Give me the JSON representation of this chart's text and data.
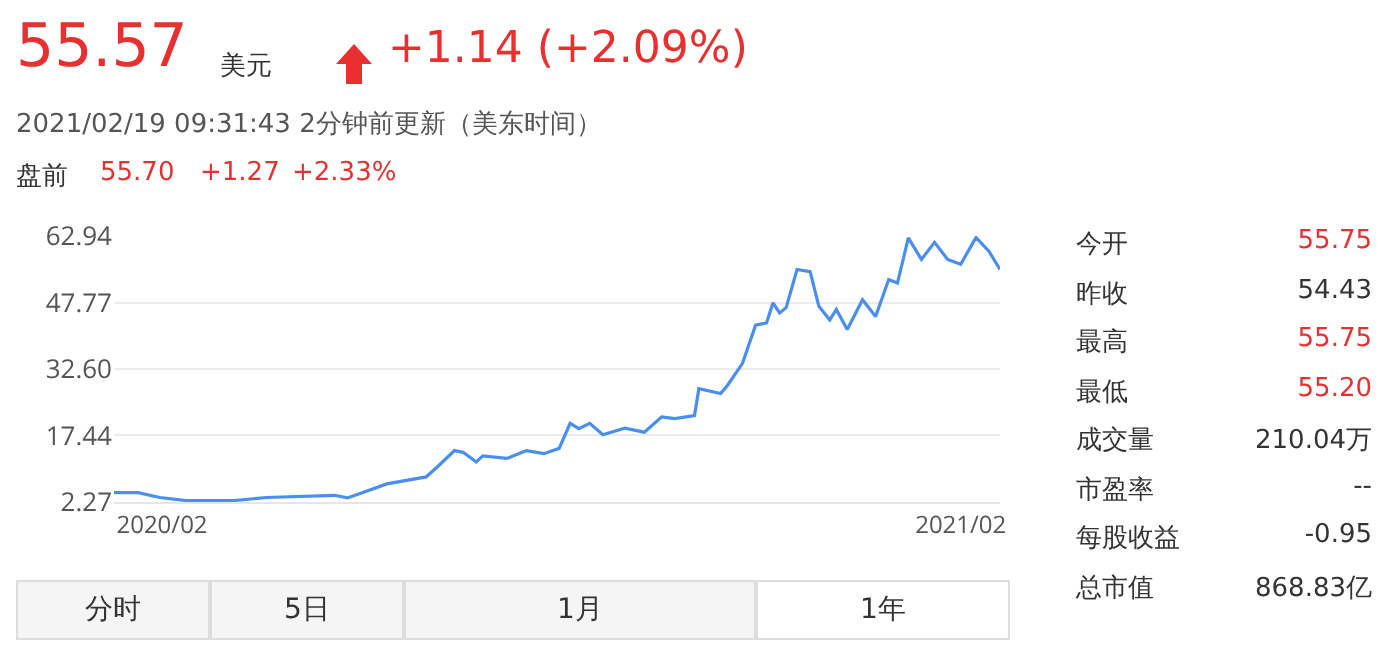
{
  "chart_data": {
    "type": "line",
    "x": [
      "2020-01-10",
      "2020-01-21",
      "2020-01-31",
      "2020-02-12",
      "2020-03-05",
      "2020-03-20",
      "2020-04-20",
      "2020-04-26",
      "2020-05-04",
      "2020-05-14",
      "2020-06-01",
      "2020-06-06",
      "2020-06-14",
      "2020-06-18",
      "2020-06-24",
      "2020-06-27",
      "2020-07-08",
      "2020-07-17",
      "2020-07-25",
      "2020-08-01",
      "2020-08-06",
      "2020-08-10",
      "2020-08-15",
      "2020-08-21",
      "2020-08-31",
      "2020-09-09",
      "2020-09-17",
      "2020-09-23",
      "2020-10-02",
      "2020-10-04",
      "2020-10-14",
      "2020-10-17",
      "2020-10-24",
      "2020-10-30",
      "2020-11-04",
      "2020-11-07",
      "2020-11-10",
      "2020-11-13",
      "2020-11-18",
      "2020-11-24",
      "2020-11-28",
      "2020-12-03",
      "2020-12-06",
      "2020-12-11",
      "2020-12-18",
      "2020-12-24",
      "2020-12-30",
      "2021-01-03",
      "2021-01-08",
      "2021-01-14",
      "2021-01-20",
      "2021-01-26",
      "2021-02-01",
      "2021-02-08",
      "2021-02-14",
      "2021-02-19"
    ],
    "series": [
      {
        "color": "#4a8ff0",
        "values": [
          4.4,
          4.4,
          3.3,
          2.6,
          2.6,
          3.3,
          3.8,
          3.2,
          4.6,
          6.4,
          8.0,
          10.2,
          14.0,
          13.6,
          11.4,
          12.8,
          12.2,
          14.0,
          13.3,
          14.5,
          20.2,
          19.0,
          20.2,
          17.6,
          19.1,
          18.2,
          21.7,
          21.3,
          22.0,
          28.1,
          27.0,
          28.8,
          33.9,
          42.6,
          43.1,
          47.7,
          45.4,
          46.6,
          55.3,
          54.8,
          46.9,
          43.8,
          46.2,
          41.6,
          48.4,
          44.6,
          53.0,
          52.2,
          62.5,
          57.6,
          61.5,
          57.6,
          56.5,
          62.6,
          59.4,
          55.3
        ]
      }
    ],
    "xlim": [
      "2020-01-10",
      "2021-02-19"
    ],
    "xticks": [
      {
        "value": "2020-02-01",
        "label": "2020/02"
      },
      {
        "value": "2021-02-01",
        "label": "2021/02"
      }
    ],
    "ylim": [
      2.27,
      62.94
    ],
    "yticks": [
      2.27,
      17.44,
      {
        "value": 32.6,
        "label": "32.60"
      },
      47.77,
      62.94
    ],
    "grid": "y",
    "legend": false,
    "marker": "none",
    "line_style": "solid",
    "annotations": [
      "55.57",
      "美元",
      "+1.14 (+2.09%)",
      "2021/02/19 09:31:43 2分钟前更新（美东时间）",
      "盘前",
      "55.70",
      "+1.27",
      "+2.33%",
      "今开",
      "55.75",
      "昨收",
      "54.43",
      "最高",
      "55.75",
      "最低",
      "55.20",
      "成交量",
      "210.04万",
      "市盈率",
      "--",
      "每股收益",
      "-0.95",
      "总市值",
      "868.83亿",
      "分时",
      "5日",
      "1月",
      "1年"
    ]
  }
}
